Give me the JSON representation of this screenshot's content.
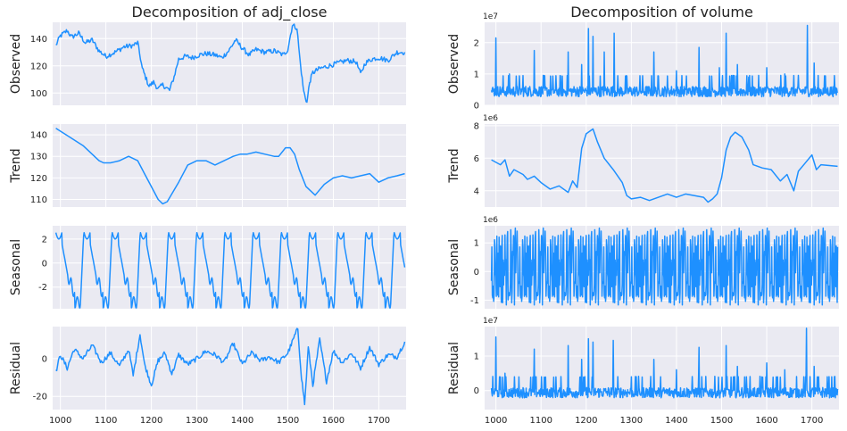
{
  "chart_data": [
    {
      "type": "line",
      "title": "Decomposition of adj_close",
      "ylabel": "Observed",
      "series_color": "#1e90ff",
      "xlim": [
        983,
        1760
      ],
      "ylim": [
        91,
        152
      ],
      "xticks": [
        1000,
        1100,
        1200,
        1300,
        1400,
        1500,
        1600,
        1700
      ],
      "yticks": [
        100,
        120,
        140
      ],
      "show_xticks": false,
      "x": [
        990,
        1000,
        1015,
        1025,
        1040,
        1055,
        1070,
        1085,
        1100,
        1120,
        1140,
        1160,
        1170,
        1180,
        1195,
        1205,
        1215,
        1225,
        1240,
        1250,
        1260,
        1275,
        1290,
        1305,
        1320,
        1340,
        1355,
        1370,
        1385,
        1400,
        1415,
        1430,
        1450,
        1470,
        1490,
        1500,
        1510,
        1520,
        1528,
        1535,
        1542,
        1548,
        1555,
        1570,
        1590,
        1610,
        1630,
        1650,
        1660,
        1670,
        1685,
        1700,
        1720,
        1740,
        1757
      ],
      "y": [
        135,
        142,
        146,
        141,
        144,
        137,
        139,
        131,
        127,
        130,
        134,
        135,
        137,
        118,
        105,
        108,
        103,
        106,
        102,
        112,
        125,
        127,
        126,
        128,
        129,
        128,
        126,
        131,
        139,
        133,
        128,
        132,
        130,
        131,
        128,
        132,
        150,
        148,
        120,
        101,
        93,
        108,
        115,
        118,
        120,
        122,
        124,
        123,
        114,
        122,
        125,
        126,
        124,
        130,
        130
      ]
    },
    {
      "type": "line",
      "ylabel": "Trend",
      "series_color": "#1e90ff",
      "xlim": [
        983,
        1760
      ],
      "ylim": [
        106.5,
        145
      ],
      "xticks": [
        1000,
        1100,
        1200,
        1300,
        1400,
        1500,
        1600,
        1700
      ],
      "yticks": [
        110,
        120,
        130,
        140
      ],
      "show_xticks": false,
      "x": [
        990,
        1020,
        1050,
        1070,
        1085,
        1095,
        1110,
        1130,
        1150,
        1170,
        1185,
        1200,
        1215,
        1225,
        1235,
        1260,
        1280,
        1300,
        1320,
        1340,
        1360,
        1380,
        1395,
        1410,
        1430,
        1450,
        1470,
        1480,
        1495,
        1505,
        1515,
        1525,
        1540,
        1560,
        1580,
        1600,
        1620,
        1640,
        1660,
        1680,
        1700,
        1720,
        1740,
        1757
      ],
      "y": [
        143,
        139,
        135,
        131,
        128,
        127,
        127,
        128,
        130,
        128,
        122,
        116,
        110,
        108,
        109,
        118,
        126,
        128,
        128,
        126,
        128,
        130,
        131,
        131,
        132,
        131,
        130,
        130,
        134,
        134,
        131,
        124,
        116,
        112,
        117,
        120,
        121,
        120,
        121,
        122,
        118,
        120,
        121,
        122
      ]
    },
    {
      "type": "line",
      "ylabel": "Seasonal",
      "series_color": "#1e90ff",
      "xlim": [
        983,
        1760
      ],
      "ylim": [
        -3.8,
        3.1
      ],
      "xticks": [
        1000,
        1100,
        1200,
        1300,
        1400,
        1500,
        1600,
        1700
      ],
      "yticks": [
        -2,
        0,
        2
      ],
      "show_xticks": false,
      "pattern": "periodic",
      "period": 62,
      "x_start": 990,
      "x_end": 1757,
      "amplitude_max": 2.6,
      "amplitude_min": -3.4
    },
    {
      "type": "line",
      "ylabel": "Residual",
      "series_color": "#1e90ff",
      "xlim": [
        983,
        1760
      ],
      "ylim": [
        -27,
        17
      ],
      "xticks": [
        1000,
        1100,
        1200,
        1300,
        1400,
        1500,
        1600,
        1700
      ],
      "yticks": [
        -20,
        0
      ],
      "show_xticks": true,
      "x": [
        990,
        1000,
        1015,
        1030,
        1050,
        1070,
        1090,
        1110,
        1130,
        1150,
        1160,
        1175,
        1185,
        1200,
        1215,
        1230,
        1245,
        1260,
        1280,
        1300,
        1320,
        1340,
        1360,
        1380,
        1400,
        1420,
        1440,
        1460,
        1480,
        1500,
        1515,
        1522,
        1530,
        1537,
        1545,
        1555,
        1570,
        1585,
        1600,
        1620,
        1640,
        1660,
        1680,
        1700,
        1720,
        1740,
        1757
      ],
      "y": [
        -7,
        2,
        -5,
        5,
        0,
        7,
        -2,
        3,
        -4,
        5,
        -9,
        13,
        -3,
        -14,
        -1,
        3,
        -8,
        2,
        -3,
        0,
        4,
        2,
        -2,
        8,
        -3,
        3,
        -1,
        1,
        -2,
        3,
        12,
        16,
        -10,
        -24,
        6,
        -14,
        10,
        -12,
        4,
        -2,
        3,
        -5,
        6,
        -3,
        2,
        1,
        9
      ]
    },
    {
      "type": "line",
      "title": "Decomposition of volume",
      "ylabel": "Observed",
      "sci_label": "1e7",
      "series_color": "#1e90ff",
      "xlim": [
        975,
        1760
      ],
      "ylim": [
        0,
        2.65
      ],
      "xticks": [
        1000,
        1100,
        1200,
        1300,
        1400,
        1500,
        1600,
        1700
      ],
      "yticks": [
        0,
        1,
        2
      ],
      "show_xticks": false,
      "pattern": "spiky",
      "baseline": 0.45,
      "noise": 0.22,
      "x_start": 990,
      "x_end": 1757,
      "spikes": [
        [
          1000,
          2.15
        ],
        [
          1030,
          1.0
        ],
        [
          1060,
          0.95
        ],
        [
          1085,
          1.75
        ],
        [
          1160,
          1.7
        ],
        [
          1190,
          1.3
        ],
        [
          1205,
          2.45
        ],
        [
          1215,
          2.2
        ],
        [
          1240,
          1.7
        ],
        [
          1262,
          2.3
        ],
        [
          1350,
          1.7
        ],
        [
          1400,
          1.1
        ],
        [
          1450,
          1.85
        ],
        [
          1495,
          1.2
        ],
        [
          1510,
          2.3
        ],
        [
          1535,
          1.3
        ],
        [
          1560,
          0.9
        ],
        [
          1600,
          1.2
        ],
        [
          1640,
          1.0
        ],
        [
          1690,
          2.55
        ],
        [
          1705,
          1.35
        ]
      ]
    },
    {
      "type": "line",
      "ylabel": "Trend",
      "sci_label": "1e6",
      "series_color": "#1e90ff",
      "xlim": [
        975,
        1760
      ],
      "ylim": [
        3.0,
        8.1
      ],
      "xticks": [
        1000,
        1100,
        1200,
        1300,
        1400,
        1500,
        1600,
        1700
      ],
      "yticks": [
        4,
        6,
        8
      ],
      "show_xticks": false,
      "x": [
        990,
        1010,
        1020,
        1030,
        1040,
        1060,
        1070,
        1085,
        1100,
        1120,
        1140,
        1160,
        1170,
        1180,
        1190,
        1200,
        1215,
        1225,
        1240,
        1260,
        1280,
        1290,
        1300,
        1320,
        1340,
        1360,
        1380,
        1400,
        1420,
        1440,
        1460,
        1470,
        1480,
        1490,
        1500,
        1510,
        1520,
        1530,
        1545,
        1560,
        1570,
        1590,
        1610,
        1630,
        1645,
        1660,
        1670,
        1685,
        1700,
        1710,
        1720,
        1757
      ],
      "y": [
        5.9,
        5.6,
        5.9,
        4.9,
        5.3,
        5.0,
        4.7,
        4.9,
        4.5,
        4.1,
        4.3,
        3.9,
        4.6,
        4.2,
        6.6,
        7.5,
        7.8,
        7.0,
        6.0,
        5.3,
        4.5,
        3.7,
        3.5,
        3.6,
        3.4,
        3.6,
        3.8,
        3.6,
        3.8,
        3.7,
        3.6,
        3.3,
        3.5,
        3.8,
        4.8,
        6.5,
        7.3,
        7.6,
        7.3,
        6.5,
        5.6,
        5.4,
        5.3,
        4.6,
        5.0,
        4.0,
        5.2,
        5.7,
        6.2,
        5.3,
        5.6,
        5.5
      ]
    },
    {
      "type": "line",
      "ylabel": "Seasonal",
      "sci_label": "1e6",
      "series_color": "#1e90ff",
      "xlim": [
        975,
        1760
      ],
      "ylim": [
        -1.3,
        1.6
      ],
      "xticks": [
        1000,
        1100,
        1200,
        1300,
        1400,
        1500,
        1600,
        1700
      ],
      "yticks": [
        -1,
        0,
        1
      ],
      "show_xticks": false,
      "pattern": "noisy-periodic",
      "period": 62,
      "x_start": 990,
      "x_end": 1757,
      "amplitude_max": 1.55,
      "amplitude_min": -1.2
    },
    {
      "type": "line",
      "ylabel": "Residual",
      "sci_label": "1e7",
      "series_color": "#1e90ff",
      "xlim": [
        975,
        1760
      ],
      "ylim": [
        -0.55,
        1.85
      ],
      "xticks": [
        1000,
        1100,
        1200,
        1300,
        1400,
        1500,
        1600,
        1700
      ],
      "yticks": [
        0,
        1
      ],
      "show_xticks": true,
      "pattern": "spiky",
      "baseline": -0.05,
      "noise": 0.2,
      "x_start": 990,
      "x_end": 1757,
      "spikes": [
        [
          1000,
          1.55
        ],
        [
          1020,
          0.5
        ],
        [
          1085,
          1.2
        ],
        [
          1160,
          1.3
        ],
        [
          1190,
          0.9
        ],
        [
          1205,
          1.5
        ],
        [
          1215,
          1.4
        ],
        [
          1260,
          1.45
        ],
        [
          1350,
          0.9
        ],
        [
          1400,
          0.6
        ],
        [
          1450,
          1.25
        ],
        [
          1510,
          1.3
        ],
        [
          1535,
          0.7
        ],
        [
          1600,
          0.8
        ],
        [
          1640,
          0.6
        ],
        [
          1688,
          1.8
        ],
        [
          1705,
          0.7
        ],
        [
          1300,
          0.4
        ]
      ]
    }
  ]
}
